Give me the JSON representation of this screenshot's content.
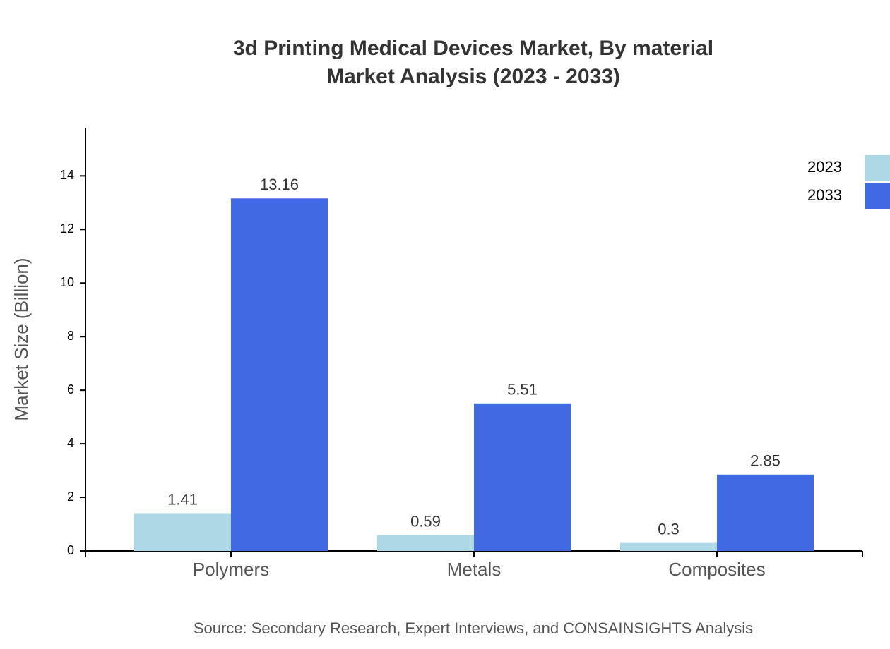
{
  "chart_data": {
    "type": "bar",
    "title": "3d Printing Medical Devices Market, By material",
    "subtitle": "Market Analysis (2023 - 2033)",
    "y_label": "Market Size (Billion)",
    "source": "Source: Secondary Research, Expert Interviews, and CONSAINSIGHTS Analysis",
    "categories": [
      "Polymers",
      "Metals",
      "Composites"
    ],
    "series": [
      {
        "name": "2023",
        "color": "#add8e6",
        "values": [
          1.41,
          0.59,
          0.3
        ]
      },
      {
        "name": "2033",
        "color": "#4169e1",
        "values": [
          13.16,
          5.51,
          2.85
        ]
      }
    ],
    "ylim": [
      0,
      15.8
    ],
    "yticks": [
      0,
      2,
      4,
      6,
      8,
      10,
      12,
      14
    ],
    "grid": false,
    "legend": "top-right"
  }
}
